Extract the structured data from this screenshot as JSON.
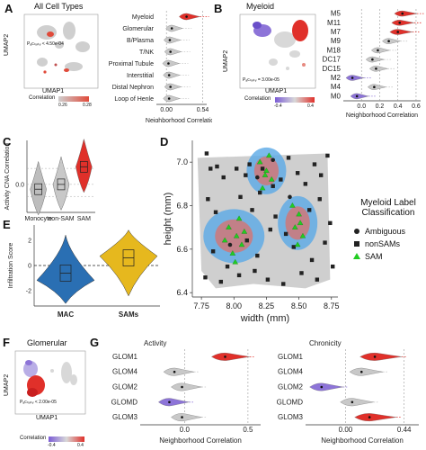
{
  "panels": {
    "A": {
      "label": "A",
      "umap_title": "All Cell Types",
      "umap_xlabel": "UMAP1",
      "umap_ylabel": "UMAP2",
      "p_value": "Pₐcₜᵢᵥᵢₜᵧ < 4.50e-04",
      "colorbar_title": "Correlation",
      "colorbar_ticks": [
        "0.26",
        "0.28"
      ],
      "colorbar_colors": [
        "#cfcfcf",
        "#e04a3a"
      ]
    },
    "B": {
      "label": "B",
      "umap_title": "Myeloid",
      "umap_xlabel": "UMAP1",
      "umap_ylabel": "UMAP2",
      "p_value": "Pₐcₜᵢᵥᵢₜᵧ = 3.00e-05",
      "colorbar_title": "Correlation",
      "colorbar_ticks": [
        "-0.4",
        "0.4"
      ],
      "colorbar_colors": [
        "#7b5cd6",
        "#d8d8d8",
        "#e0302a"
      ]
    },
    "C": {
      "label": "C"
    },
    "D": {
      "label": "D",
      "legend_title_line1": "Myeloid Label",
      "legend_title_line2": "Classification",
      "legend_items": [
        {
          "name": "Ambiguous",
          "shape": "circle",
          "color": "#222222"
        },
        {
          "name": "nonSAMs",
          "shape": "square",
          "color": "#222222"
        },
        {
          "name": "SAM",
          "shape": "triangle",
          "color": "#22cc22"
        }
      ]
    },
    "E": {
      "label": "E"
    },
    "F": {
      "label": "F",
      "umap_title": "Glomerular",
      "umap_xlabel": "UMAP1",
      "umap_ylabel": "UMAP2",
      "p_value": "Pₐcₜᵢᵥᵢₜᵧ < 2.00e-05",
      "colorbar_title": "Correlation",
      "colorbar_ticks": [
        "-0.4",
        "0.4"
      ],
      "colorbar_colors": [
        "#7b5cd6",
        "#d8d8d8",
        "#e0302a"
      ]
    },
    "G": {
      "label": "G"
    }
  },
  "chart_data": [
    {
      "id": "A_violin",
      "type": "violin",
      "orientation": "horizontal",
      "categories": [
        "Myeloid",
        "Glomerular",
        "B/Plasma",
        "T/NK",
        "Proximal Tubule",
        "Interstitial",
        "Distal Nephron",
        "Loop of Henle"
      ],
      "medians": [
        0.3,
        0.08,
        0.05,
        0.06,
        0.03,
        0.04,
        0.06,
        0.04
      ],
      "xlabel": "Neighborhood Correlation",
      "xticks": [
        "0.00",
        "0.54"
      ],
      "xlim": [
        -0.15,
        0.6
      ]
    },
    {
      "id": "B_violin",
      "type": "violin",
      "orientation": "horizontal",
      "categories": [
        "M5",
        "M11",
        "M7",
        "M9",
        "M18",
        "DC17",
        "DC15",
        "M2",
        "M4",
        "M0"
      ],
      "medians": [
        0.45,
        0.42,
        0.4,
        0.3,
        0.18,
        0.12,
        0.16,
        -0.1,
        0.14,
        -0.05
      ],
      "xlabel": "Neighborhood Correlation",
      "xticks": [
        "0.0",
        "0.2",
        "0.4",
        "0.6"
      ],
      "xlim": [
        -0.2,
        0.65
      ]
    },
    {
      "id": "C_violin",
      "type": "violin",
      "categories": [
        "Monocyte",
        "non-SAM",
        "SAM"
      ],
      "medians": [
        -0.06,
        0.0,
        0.22
      ],
      "ylabel": "Activity CNA Correlation",
      "yticks": [
        "0.0"
      ],
      "ylim": [
        -0.35,
        0.55
      ]
    },
    {
      "id": "D_scatter",
      "type": "scatter",
      "xlabel": "width (mm)",
      "ylabel": "height (mm)",
      "xticks": [
        "7.75",
        "8.00",
        "8.25",
        "8.50",
        "8.75"
      ],
      "yticks": [
        "6.4",
        "6.6",
        "6.8",
        "7.0"
      ],
      "xlim": [
        7.68,
        8.8
      ],
      "ylim": [
        6.38,
        7.1
      ],
      "series": [
        {
          "name": "Ambiguous",
          "x": [
            8.3,
            8.18,
            8.43,
            7.97
          ],
          "y": [
            7.01,
            6.93,
            6.84,
            6.62
          ]
        },
        {
          "name": "nonSAMs",
          "x": [
            7.79,
            7.82,
            7.87,
            7.92,
            8.02,
            8.09,
            8.12,
            8.22,
            8.3,
            8.36,
            8.42,
            8.49,
            8.55,
            8.62,
            8.67,
            8.72,
            7.8,
            7.86,
            8.05,
            8.14,
            8.2,
            8.32,
            8.4,
            8.58,
            8.66,
            8.74,
            7.84,
            7.95,
            8.1,
            8.18,
            8.28,
            8.46,
            8.6,
            8.7,
            7.78,
            7.9,
            8.04,
            8.16,
            8.26,
            8.38,
            8.52,
            8.64,
            8.76
          ],
          "y": [
            7.04,
            6.97,
            6.98,
            6.93,
            6.97,
            6.94,
            6.99,
            6.97,
            6.89,
            6.92,
            7.02,
            6.95,
            6.9,
            6.99,
            6.94,
            7.03,
            6.83,
            6.77,
            6.84,
            6.78,
            6.86,
            6.75,
            6.67,
            6.78,
            6.83,
            6.72,
            6.59,
            6.52,
            6.64,
            6.57,
            6.69,
            6.61,
            6.55,
            6.63,
            6.47,
            6.45,
            6.48,
            6.5,
            6.46,
            6.44,
            6.49,
            6.46,
            6.52
          ]
        },
        {
          "name": "SAM",
          "x": [
            7.96,
            8.02,
            8.06,
            7.99,
            8.04,
            8.2,
            8.25,
            8.29,
            8.22,
            8.27,
            8.45,
            8.5,
            8.47,
            8.53,
            8.49,
            7.93,
            8.08,
            8.24,
            8.51,
            8.01
          ],
          "y": [
            6.7,
            6.66,
            6.62,
            6.58,
            6.74,
            7.0,
            6.96,
            6.92,
            6.88,
            7.03,
            6.8,
            6.76,
            6.7,
            6.66,
            6.62,
            6.64,
            6.68,
            6.94,
            6.72,
            6.54
          ]
        }
      ]
    },
    {
      "id": "E_violin",
      "type": "violin",
      "categories": [
        "MAC",
        "SAMs"
      ],
      "medians": [
        -0.6,
        0.6
      ],
      "ylabel": "Infiltration Score",
      "yticks": [
        "2",
        "0",
        "-2"
      ],
      "ylim": [
        -3.2,
        3.2
      ],
      "colors": [
        "#2a6fb3",
        "#e6b81e"
      ]
    },
    {
      "id": "G_activity",
      "type": "violin",
      "orientation": "horizontal",
      "title": "Activity",
      "categories": [
        "GLOM1",
        "GLOM4",
        "GLOM2",
        "GLOMD",
        "GLOM3"
      ],
      "medians": [
        0.32,
        -0.08,
        -0.02,
        -0.12,
        -0.02
      ],
      "xlabel": "Neighborhood Correlation",
      "xticks": [
        "0.0",
        "0.5"
      ],
      "xlim": [
        -0.35,
        0.6
      ]
    },
    {
      "id": "G_chronicity",
      "type": "violin",
      "orientation": "horizontal",
      "title": "Chronicity",
      "categories": [
        "GLOM1",
        "GLOM4",
        "GLOM2",
        "GLOMD",
        "GLOM3"
      ],
      "medians": [
        0.22,
        0.12,
        -0.18,
        0.05,
        0.18
      ],
      "xlabel": "Neighborhood Correlation",
      "xticks": [
        "0.00",
        "0.44"
      ],
      "xlim": [
        -0.3,
        0.55
      ]
    }
  ]
}
